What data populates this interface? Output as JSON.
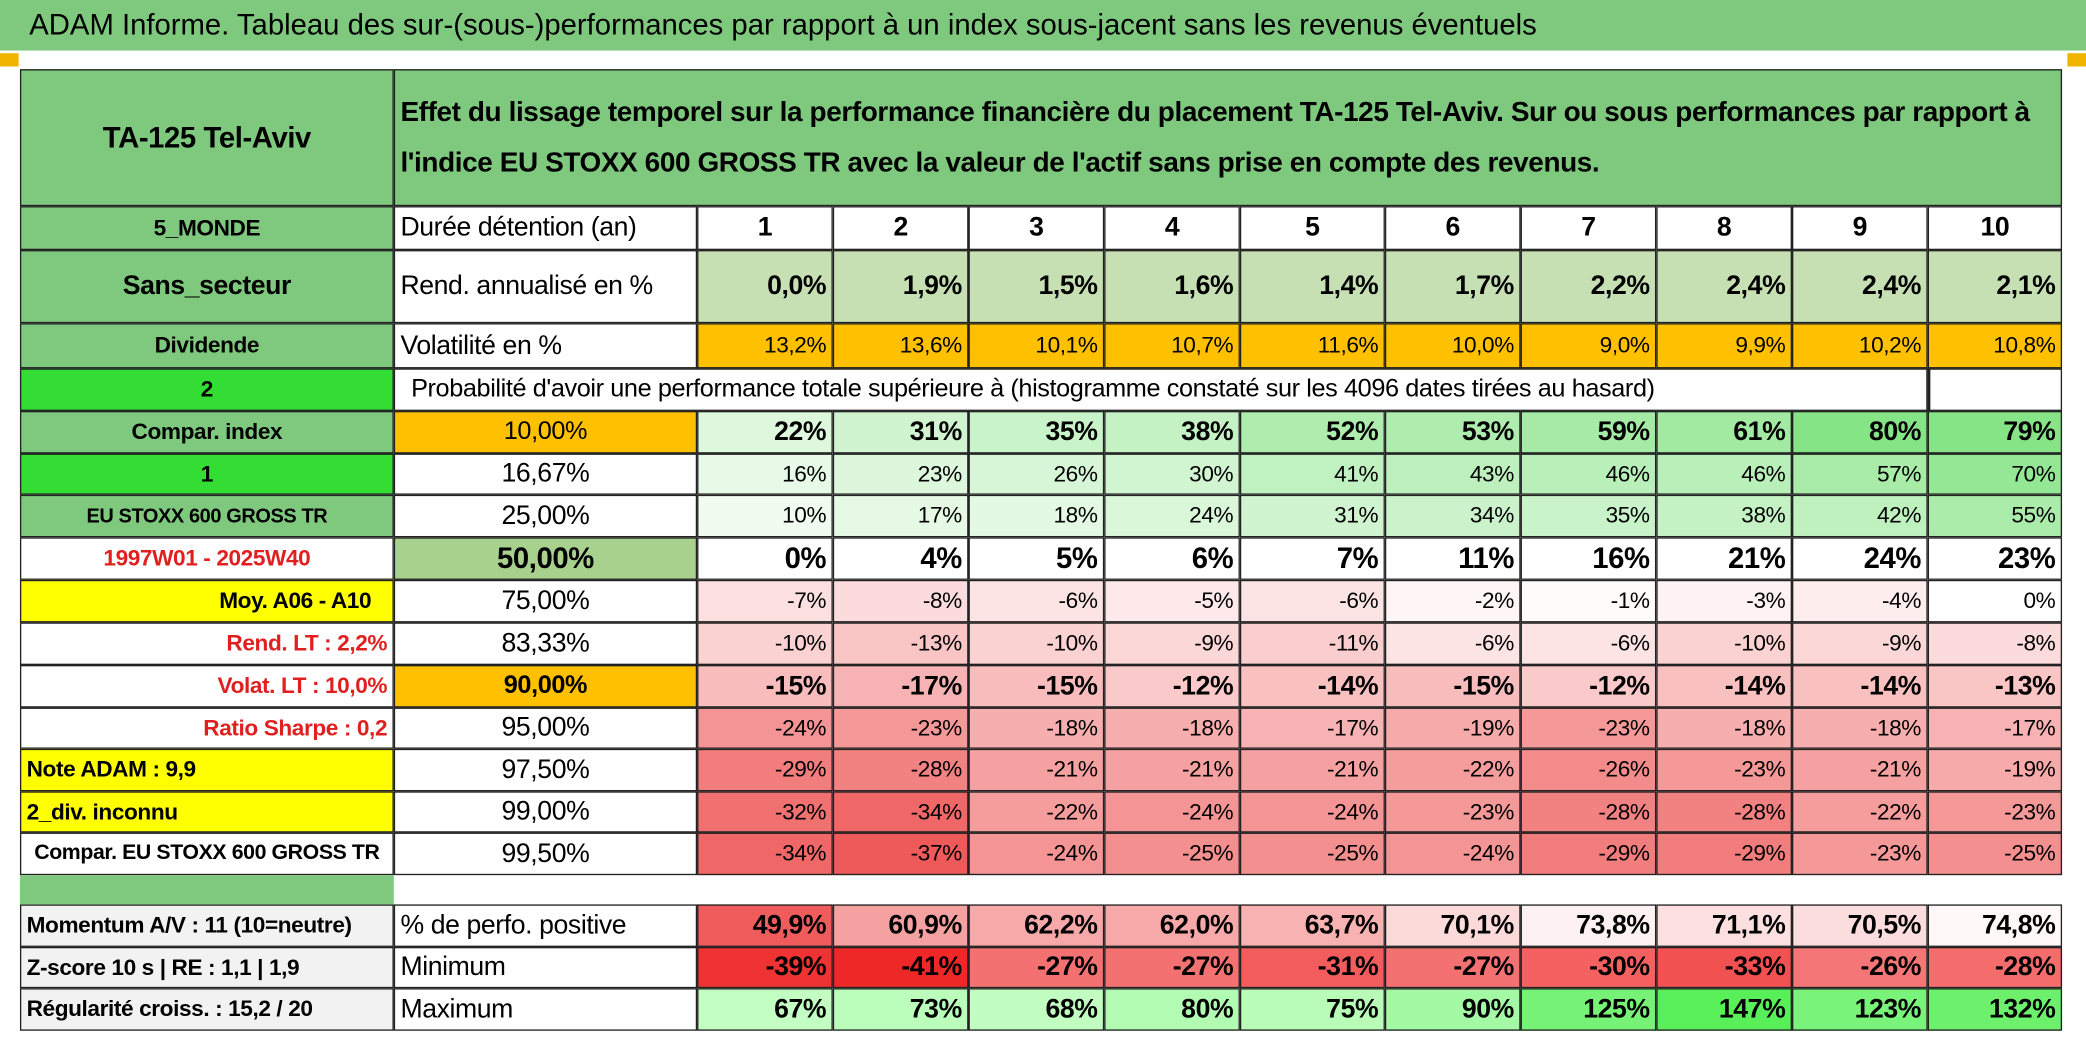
{
  "header": {
    "title": "ADAM Informe. Tableau des sur-(sous-)performances par rapport à un index sous-jacent sans les revenus éventuels"
  },
  "table": {
    "asset": "TA-125 Tel-Aviv",
    "description": "Effet du lissage temporel sur la performance financière du placement TA-125 Tel-Aviv. Sur ou sous performances par rapport à l'indice EU STOXX 600 GROSS TR avec la valeur de l'actif sans prise en compte des revenus.",
    "probability_title": "Probabilité d'avoir une performance totale supérieure à (histogramme constaté sur les 4096 dates tirées au hasard)",
    "rows": [
      {
        "label": "5_MONDE",
        "key": "Durée détention (an)",
        "values": [
          "1",
          "2",
          "3",
          "4",
          "5",
          "6",
          "7",
          "8",
          "9",
          "10"
        ]
      },
      {
        "label": "Sans_secteur",
        "key": "Rend. annualisé en %",
        "values": [
          "0,0%",
          "1,9%",
          "1,5%",
          "1,6%",
          "1,4%",
          "1,7%",
          "2,2%",
          "2,4%",
          "2,4%",
          "2,1%"
        ]
      },
      {
        "label": "Dividende",
        "key": "Volatilité en %",
        "values": [
          "13,2%",
          "13,6%",
          "10,1%",
          "10,7%",
          "11,6%",
          "10,0%",
          "9,0%",
          "9,9%",
          "10,2%",
          "10,8%"
        ]
      },
      {
        "label": "2"
      },
      {
        "label": "Compar. index",
        "key": "10,00%",
        "values": [
          "22%",
          "31%",
          "35%",
          "38%",
          "52%",
          "53%",
          "59%",
          "61%",
          "80%",
          "79%"
        ]
      },
      {
        "label": "1",
        "key": "16,67%",
        "values": [
          "16%",
          "23%",
          "26%",
          "30%",
          "41%",
          "43%",
          "46%",
          "46%",
          "57%",
          "70%"
        ]
      },
      {
        "label": "EU STOXX 600 GROSS TR",
        "key": "25,00%",
        "values": [
          "10%",
          "17%",
          "18%",
          "24%",
          "31%",
          "34%",
          "35%",
          "38%",
          "42%",
          "55%"
        ]
      },
      {
        "label": "1997W01 - 2025W40",
        "key": "50,00%",
        "values": [
          "0%",
          "4%",
          "5%",
          "6%",
          "7%",
          "11%",
          "16%",
          "21%",
          "24%",
          "23%"
        ]
      },
      {
        "label": "Moy. A06 - A10",
        "key": "75,00%",
        "values": [
          "-7%",
          "-8%",
          "-6%",
          "-5%",
          "-6%",
          "-2%",
          "-1%",
          "-3%",
          "-4%",
          "0%"
        ]
      },
      {
        "label": "Rend. LT :   2,2%",
        "key": "83,33%",
        "values": [
          "-10%",
          "-13%",
          "-10%",
          "-9%",
          "-11%",
          "-6%",
          "-6%",
          "-10%",
          "-9%",
          "-8%"
        ]
      },
      {
        "label": "Volat. LT :   10,0%",
        "key": "90,00%",
        "values": [
          "-15%",
          "-17%",
          "-15%",
          "-12%",
          "-14%",
          "-15%",
          "-12%",
          "-14%",
          "-14%",
          "-13%"
        ]
      },
      {
        "label": "Ratio Sharpe :    0,2",
        "key": "95,00%",
        "values": [
          "-24%",
          "-23%",
          "-18%",
          "-18%",
          "-17%",
          "-19%",
          "-23%",
          "-18%",
          "-18%",
          "-17%"
        ]
      },
      {
        "label": "Note ADAM : 9,9",
        "key": "97,50%",
        "values": [
          "-29%",
          "-28%",
          "-21%",
          "-21%",
          "-21%",
          "-22%",
          "-26%",
          "-23%",
          "-21%",
          "-19%"
        ]
      },
      {
        "label": "2_div. inconnu",
        "key": "99,00%",
        "values": [
          "-32%",
          "-34%",
          "-22%",
          "-24%",
          "-24%",
          "-23%",
          "-28%",
          "-28%",
          "-22%",
          "-23%"
        ]
      },
      {
        "label": "Compar. EU STOXX 600 GROSS TR",
        "key": "99,50%",
        "values": [
          "-34%",
          "-37%",
          "-24%",
          "-25%",
          "-25%",
          "-24%",
          "-29%",
          "-29%",
          "-23%",
          "-25%"
        ]
      },
      {
        "label": "Momentum A/V : 11 (10=neutre)",
        "key": "% de perfo. positive",
        "values": [
          "49,9%",
          "60,9%",
          "62,2%",
          "62,0%",
          "63,7%",
          "70,1%",
          "73,8%",
          "71,1%",
          "70,5%",
          "74,8%"
        ]
      },
      {
        "label": "Z-score 10 s | RE : 1,1 | 1,9",
        "key": "Minimum",
        "values": [
          "-39%",
          "-41%",
          "-27%",
          "-27%",
          "-31%",
          "-27%",
          "-30%",
          "-33%",
          "-26%",
          "-28%"
        ]
      },
      {
        "label": "Régularité croiss. : 15,2 / 20",
        "key": "Maximum",
        "values": [
          "67%",
          "73%",
          "68%",
          "80%",
          "75%",
          "90%",
          "125%",
          "147%",
          "123%",
          "132%"
        ]
      }
    ]
  }
}
